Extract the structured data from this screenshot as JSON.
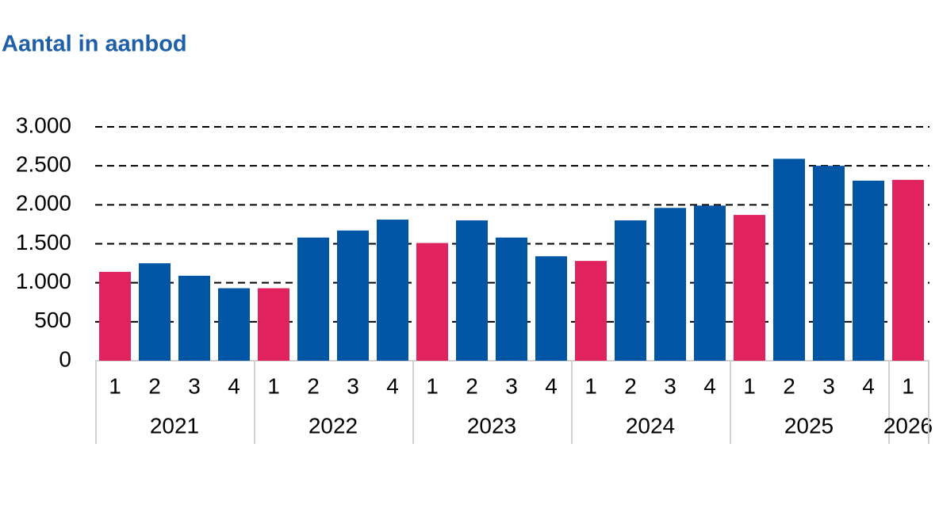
{
  "chart_data": {
    "type": "bar",
    "title": "Aantal in aanbod",
    "groups": [
      {
        "label": "2021",
        "categories": [
          "1",
          "2",
          "3",
          "4"
        ]
      },
      {
        "label": "2022",
        "categories": [
          "1",
          "2",
          "3",
          "4"
        ]
      },
      {
        "label": "2023",
        "categories": [
          "1",
          "2",
          "3",
          "4"
        ]
      },
      {
        "label": "2024",
        "categories": [
          "1",
          "2",
          "3",
          "4"
        ]
      },
      {
        "label": "2025",
        "categories": [
          "1",
          "2",
          "3",
          "4"
        ]
      },
      {
        "label": "2026",
        "categories": [
          "1"
        ]
      }
    ],
    "values": [
      1140,
      1250,
      1090,
      930,
      930,
      1580,
      1670,
      1810,
      1510,
      1800,
      1580,
      1340,
      1280,
      1800,
      1960,
      1990,
      1870,
      2590,
      2500,
      2310,
      2320
    ],
    "colors": [
      "#e0235f",
      "#0055a5",
      "#0055a5",
      "#0055a5",
      "#e0235f",
      "#0055a5",
      "#0055a5",
      "#0055a5",
      "#e0235f",
      "#0055a5",
      "#0055a5",
      "#0055a5",
      "#e0235f",
      "#0055a5",
      "#0055a5",
      "#0055a5",
      "#e0235f",
      "#0055a5",
      "#0055a5",
      "#0055a5",
      "#e0235f"
    ],
    "ylim": [
      0,
      3000
    ],
    "yticks": [
      0,
      500,
      {
        "value": 1000,
        "label": "1.000"
      },
      {
        "value": 1500,
        "label": "1.500"
      },
      {
        "value": 2000,
        "label": "2.000"
      },
      {
        "value": 2500,
        "label": "2.500"
      },
      {
        "value": 3000,
        "label": "3.000"
      }
    ],
    "grid": true
  }
}
